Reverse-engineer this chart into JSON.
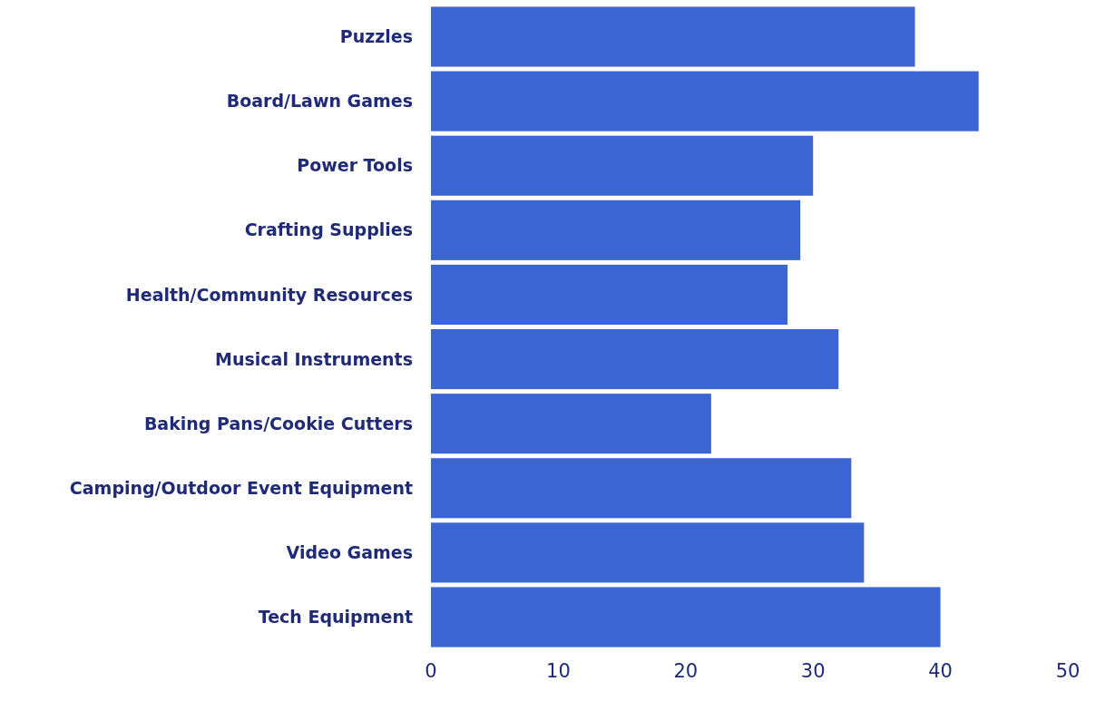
{
  "chart_data": {
    "type": "bar",
    "orientation": "horizontal",
    "categories": [
      "Puzzles",
      "Board/Lawn Games",
      "Power Tools",
      "Crafting Supplies",
      "Health/Community Resources",
      "Musical Instruments",
      "Baking Pans/Cookie Cutters",
      "Camping/Outdoor Event Equipment",
      "Video Games",
      "Tech Equipment"
    ],
    "values": [
      38,
      43,
      30,
      29,
      28,
      32,
      22,
      33,
      34,
      40
    ],
    "color": "#3c65d4",
    "xlim": [
      0,
      50
    ],
    "xticks": [
      0,
      10,
      20,
      30,
      40,
      50
    ],
    "grid": false
  }
}
